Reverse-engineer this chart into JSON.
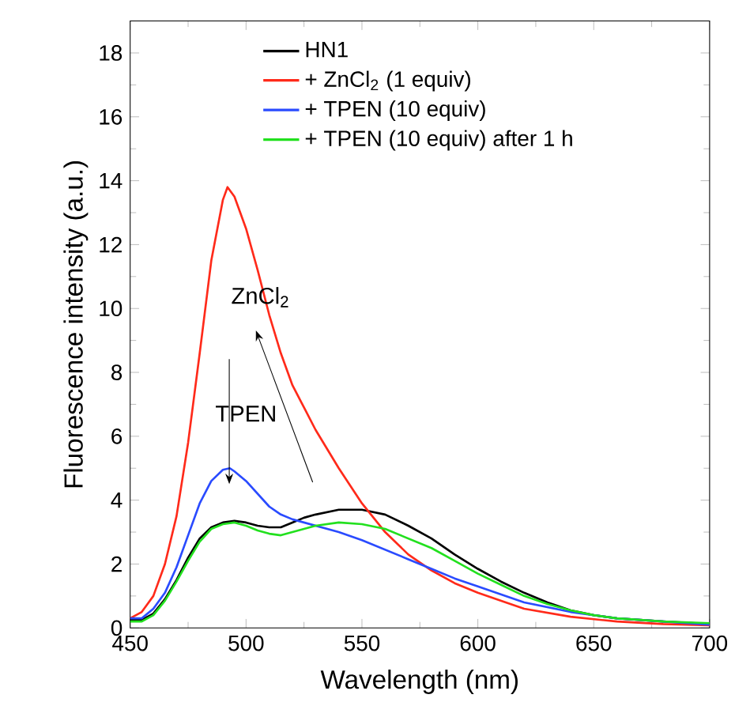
{
  "chart_data": {
    "type": "line",
    "xlabel": "Wavelength (nm)",
    "ylabel": "Fluorescence intensity (a.u.)",
    "xlim": [
      450,
      700
    ],
    "ylim": [
      0,
      19
    ],
    "xticks": [
      450,
      500,
      550,
      600,
      650,
      700
    ],
    "yticks": [
      0,
      2,
      4,
      6,
      8,
      10,
      12,
      14,
      16,
      18
    ],
    "legend": "top",
    "grid": false,
    "marker": "none",
    "line_style": "solid",
    "annotations": [
      "TPEN",
      "ZnCl$_{2}$"
    ],
    "series": [
      {
        "name": "HN1",
        "color": "#000000",
        "x": [
          450,
          455,
          460,
          465,
          470,
          475,
          480,
          485,
          490,
          495,
          500,
          505,
          510,
          515,
          520,
          525,
          530,
          540,
          550,
          560,
          570,
          580,
          590,
          600,
          610,
          620,
          630,
          640,
          650,
          660,
          680,
          700
        ],
        "values": [
          0.25,
          0.25,
          0.45,
          0.9,
          1.5,
          2.2,
          2.8,
          3.15,
          3.3,
          3.35,
          3.3,
          3.2,
          3.15,
          3.15,
          3.3,
          3.45,
          3.55,
          3.7,
          3.7,
          3.55,
          3.2,
          2.8,
          2.3,
          1.85,
          1.45,
          1.1,
          0.8,
          0.55,
          0.4,
          0.3,
          0.2,
          0.12
        ]
      },
      {
        "name": "+ ZnCl$_{2}$ (1 equiv)",
        "color": "#ff2a1a",
        "x": [
          450,
          455,
          460,
          465,
          470,
          475,
          480,
          485,
          490,
          492,
          495,
          500,
          505,
          510,
          515,
          520,
          525,
          530,
          540,
          550,
          560,
          570,
          580,
          590,
          600,
          620,
          640,
          660,
          680,
          700
        ],
        "values": [
          0.3,
          0.5,
          1.0,
          2.0,
          3.5,
          5.8,
          8.6,
          11.5,
          13.4,
          13.8,
          13.5,
          12.5,
          11.2,
          9.8,
          8.6,
          7.6,
          6.9,
          6.2,
          5.0,
          3.9,
          3.0,
          2.3,
          1.8,
          1.4,
          1.1,
          0.6,
          0.35,
          0.2,
          0.12,
          0.08
        ]
      },
      {
        "name": "+ TPEN (10 equiv)",
        "color": "#2a4bff",
        "x": [
          450,
          455,
          460,
          465,
          470,
          475,
          480,
          485,
          490,
          493,
          495,
          500,
          505,
          510,
          515,
          520,
          530,
          540,
          550,
          560,
          570,
          580,
          590,
          600,
          620,
          640,
          660,
          680,
          700
        ],
        "values": [
          0.3,
          0.3,
          0.6,
          1.1,
          1.9,
          2.9,
          3.9,
          4.6,
          4.95,
          5.0,
          4.9,
          4.6,
          4.2,
          3.8,
          3.55,
          3.4,
          3.2,
          3.0,
          2.75,
          2.45,
          2.15,
          1.85,
          1.55,
          1.3,
          0.8,
          0.5,
          0.3,
          0.2,
          0.1
        ]
      },
      {
        "name": "+ TPEN (10 equiv) after 1 h",
        "color": "#22e01e",
        "x": [
          450,
          455,
          460,
          465,
          470,
          475,
          480,
          485,
          490,
          495,
          500,
          505,
          510,
          515,
          520,
          525,
          530,
          540,
          550,
          560,
          570,
          580,
          590,
          600,
          610,
          620,
          630,
          640,
          650,
          660,
          680,
          700
        ],
        "values": [
          0.2,
          0.2,
          0.4,
          0.85,
          1.45,
          2.1,
          2.7,
          3.1,
          3.25,
          3.3,
          3.2,
          3.05,
          2.95,
          2.9,
          3.0,
          3.1,
          3.2,
          3.3,
          3.25,
          3.1,
          2.8,
          2.5,
          2.1,
          1.7,
          1.35,
          1.0,
          0.75,
          0.55,
          0.4,
          0.3,
          0.2,
          0.15
        ]
      }
    ]
  }
}
